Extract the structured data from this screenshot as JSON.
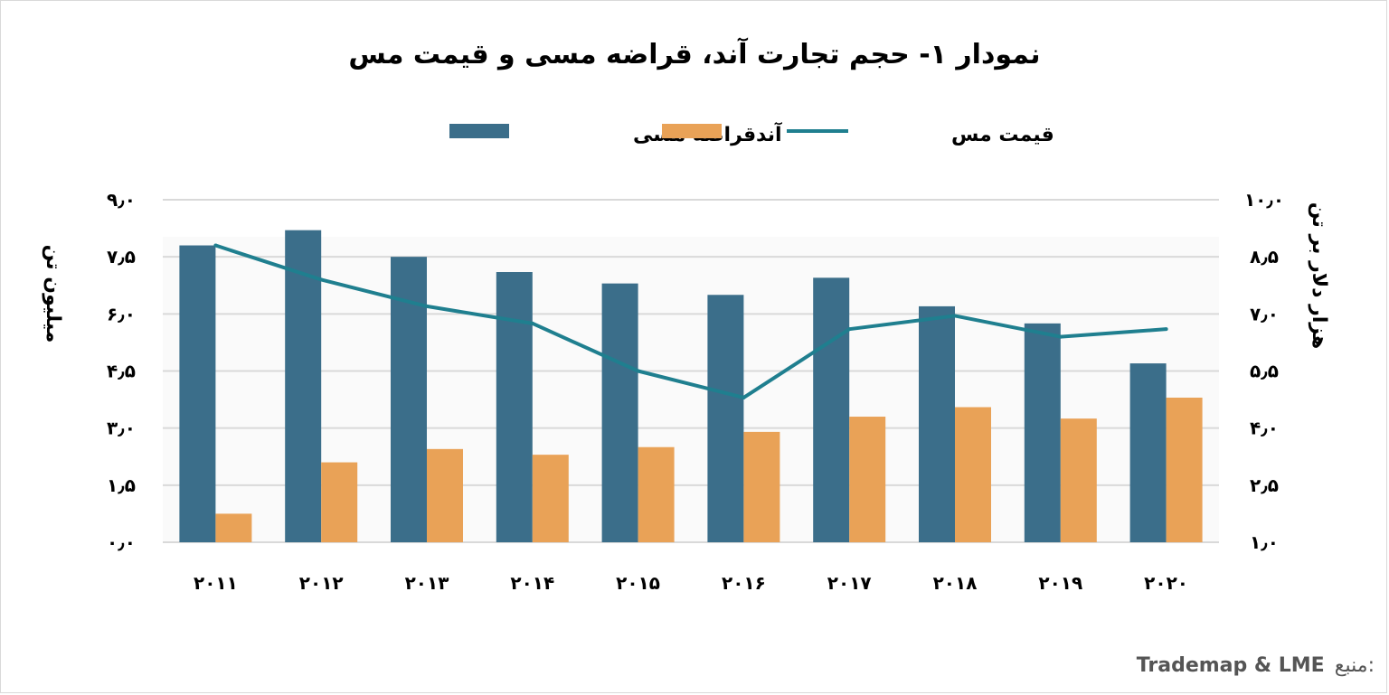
{
  "chart_data": {
    "type": "bar",
    "title": "نمودار ۱- حجم تجارت آند، قراضه مسی و قیمت مس",
    "categories": [
      "۲۰۱۱",
      "۲۰۱۲",
      "۲۰۱۳",
      "۲۰۱۴",
      "۲۰۱۵",
      "۲۰۱۶",
      "۲۰۱۷",
      "۲۰۱۸",
      "۲۰۱۹",
      "۲۰۲۰"
    ],
    "series": [
      {
        "name": "قراضه مسی",
        "axis": "left",
        "kind": "bar",
        "color": "#3b6e8a",
        "values": [
          7.8,
          8.2,
          7.5,
          7.1,
          6.8,
          6.5,
          6.95,
          6.2,
          5.75,
          4.7
        ]
      },
      {
        "name": "آند",
        "axis": "left",
        "kind": "bar",
        "color": "#e9a257",
        "values": [
          0.75,
          2.1,
          2.45,
          2.3,
          2.5,
          2.9,
          3.3,
          3.55,
          3.25,
          3.8
        ]
      },
      {
        "name": "قیمت مس",
        "axis": "right",
        "kind": "line",
        "color": "#1f7f8f",
        "values": [
          8.8,
          7.9,
          7.2,
          6.75,
          5.5,
          4.8,
          6.6,
          6.95,
          6.4,
          6.6
        ]
      }
    ],
    "ylabel": "میلیون تن",
    "ylim": [
      0,
      9
    ],
    "yticks": [
      "۰٫۰",
      "۱٫۵",
      "۳٫۰",
      "۴٫۵",
      "۶٫۰",
      "۷٫۵",
      "۹٫۰"
    ],
    "y2label": "هزار دلار بر تن",
    "y2lim": [
      1,
      10
    ],
    "y2ticks": [
      "۱٫۰",
      "۲٫۵",
      "۴٫۰",
      "۵٫۵",
      "۷٫۰",
      "۸٫۵",
      "۱۰٫۰"
    ],
    "legend": "top",
    "grid": true
  },
  "source": {
    "label": "منبع:",
    "value": "Trademap & LME"
  }
}
